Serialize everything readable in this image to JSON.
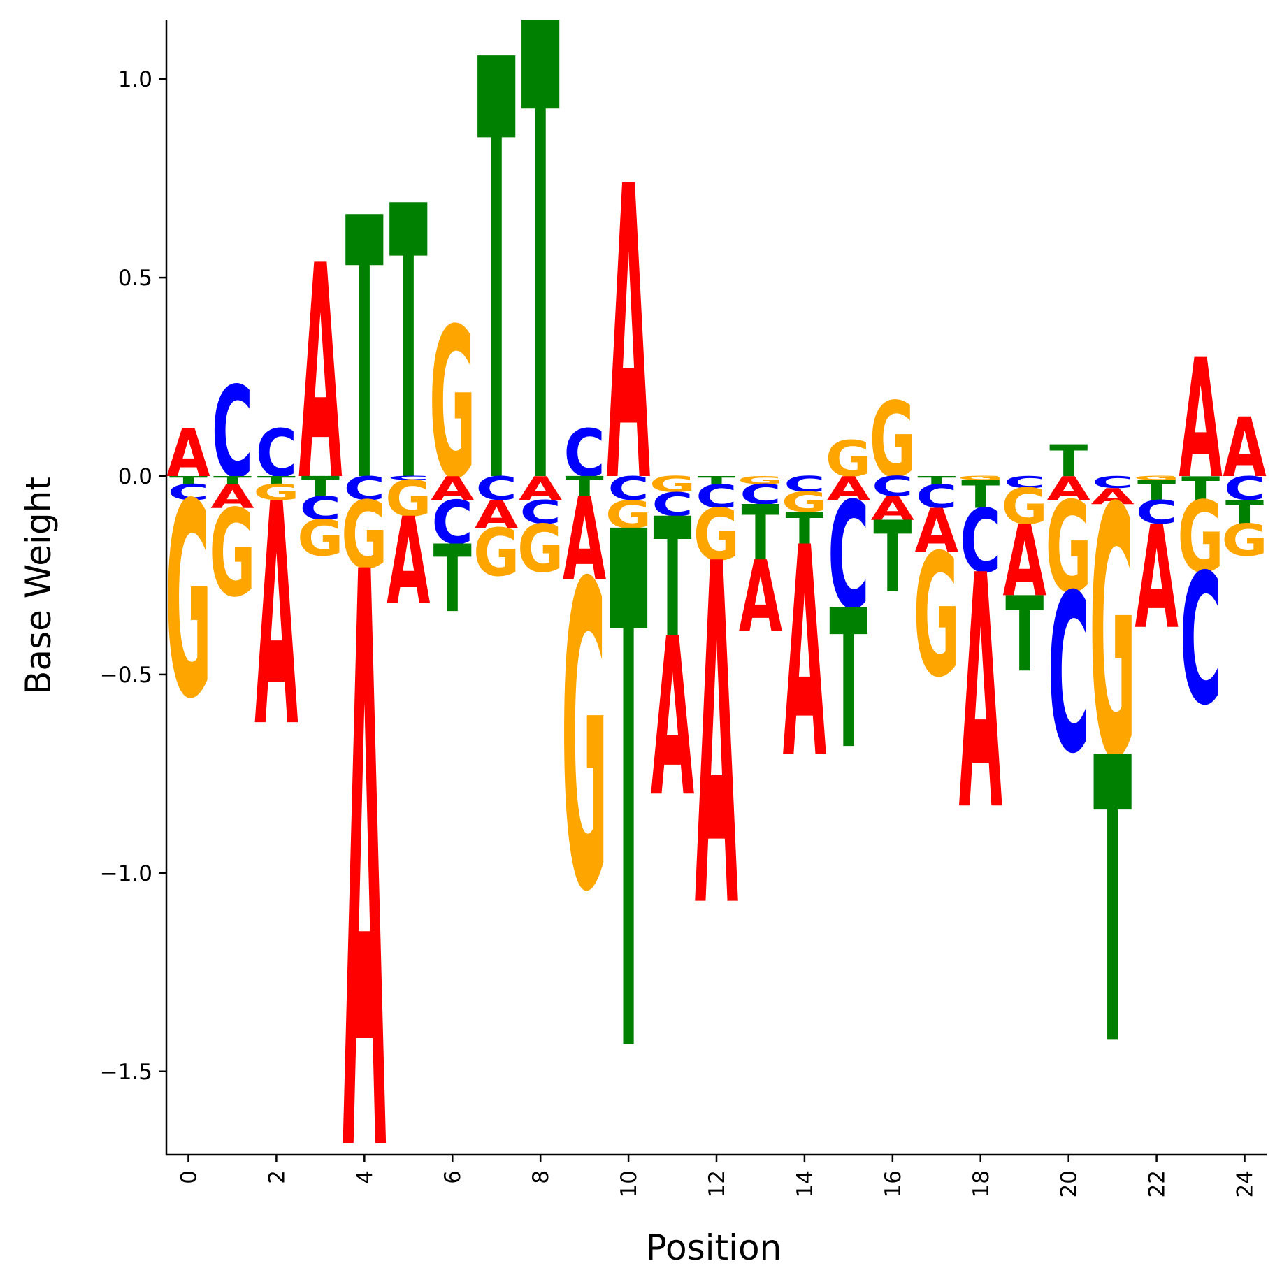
{
  "chart_data": {
    "type": "sequence-logo",
    "xlabel": "Position",
    "ylabel": "Base Weight",
    "xlim": [
      -0.5,
      24.5
    ],
    "ylim": [
      -1.71,
      1.15
    ],
    "xticks": [
      0,
      2,
      4,
      6,
      8,
      10,
      12,
      14,
      16,
      18,
      20,
      22,
      24
    ],
    "xtick_labels": [
      "0",
      "2",
      "4",
      "6",
      "8",
      "10",
      "12",
      "14",
      "16",
      "18",
      "20",
      "22",
      "24"
    ],
    "yticks": [
      1.0,
      0.5,
      0.0,
      -0.5,
      -1.0,
      -1.5
    ],
    "ytick_labels": [
      "1.0",
      "0.5",
      "0.0",
      "−0.5",
      "−1.0",
      "−1.5"
    ],
    "colors": {
      "A": "#ff0000",
      "C": "#0000ff",
      "G": "#ffa500",
      "T": "#008000"
    },
    "positions": [
      {
        "pos": 0,
        "A": 0.12,
        "C": -0.04,
        "G": -0.49,
        "T": -0.02
      },
      {
        "pos": 1,
        "A": -0.06,
        "C": 0.23,
        "G": -0.22,
        "T": -0.02
      },
      {
        "pos": 2,
        "A": -0.56,
        "C": 0.12,
        "G": -0.04,
        "T": -0.02
      },
      {
        "pos": 3,
        "A": 0.54,
        "C": -0.06,
        "G": -0.09,
        "T": -0.05
      },
      {
        "pos": 4,
        "A": -1.45,
        "C": -0.06,
        "G": -0.17,
        "T": 0.66
      },
      {
        "pos": 5,
        "A": -0.22,
        "C": -0.01,
        "G": -0.09,
        "T": 0.69
      },
      {
        "pos": 6,
        "A": -0.06,
        "C": -0.11,
        "G": 0.38,
        "T": -0.17
      },
      {
        "pos": 7,
        "A": -0.07,
        "C": -0.06,
        "G": -0.12,
        "T": 1.06
      },
      {
        "pos": 8,
        "A": -0.06,
        "C": -0.06,
        "G": -0.12,
        "T": 1.15
      },
      {
        "pos": 9,
        "A": -0.21,
        "C": 0.12,
        "G": -0.77,
        "T": -0.05
      },
      {
        "pos": 10,
        "A": 0.74,
        "C": -0.06,
        "G": -0.07,
        "T": -1.3
      },
      {
        "pos": 11,
        "A": -0.4,
        "C": -0.06,
        "G": -0.04,
        "T": -0.3
      },
      {
        "pos": 12,
        "A": -0.86,
        "C": -0.06,
        "G": -0.13,
        "T": -0.02
      },
      {
        "pos": 13,
        "A": -0.18,
        "C": -0.05,
        "G": -0.02,
        "T": -0.14
      },
      {
        "pos": 14,
        "A": -0.53,
        "C": -0.04,
        "G": -0.05,
        "T": -0.08
      },
      {
        "pos": 15,
        "A": -0.06,
        "C": -0.27,
        "G": 0.09,
        "T": -0.35
      },
      {
        "pos": 16,
        "A": -0.06,
        "C": -0.05,
        "G": 0.19,
        "T": -0.18
      },
      {
        "pos": 17,
        "A": -0.11,
        "C": -0.06,
        "G": -0.31,
        "T": -0.02
      },
      {
        "pos": 18,
        "A": -0.59,
        "C": -0.16,
        "G": -0.01,
        "T": -0.07
      },
      {
        "pos": 19,
        "A": -0.18,
        "C": -0.03,
        "G": -0.09,
        "T": -0.19
      },
      {
        "pos": 20,
        "A": -0.06,
        "C": -0.4,
        "G": -0.23,
        "T": 0.08
      },
      {
        "pos": 21,
        "A": -0.04,
        "C": -0.03,
        "G": -0.63,
        "T": -0.72
      },
      {
        "pos": 22,
        "A": -0.26,
        "C": -0.06,
        "G": -0.01,
        "T": -0.05
      },
      {
        "pos": 23,
        "A": 0.3,
        "C": -0.33,
        "G": -0.18,
        "T": -0.06
      },
      {
        "pos": 24,
        "A": 0.15,
        "C": -0.06,
        "G": -0.08,
        "T": -0.06
      }
    ]
  }
}
